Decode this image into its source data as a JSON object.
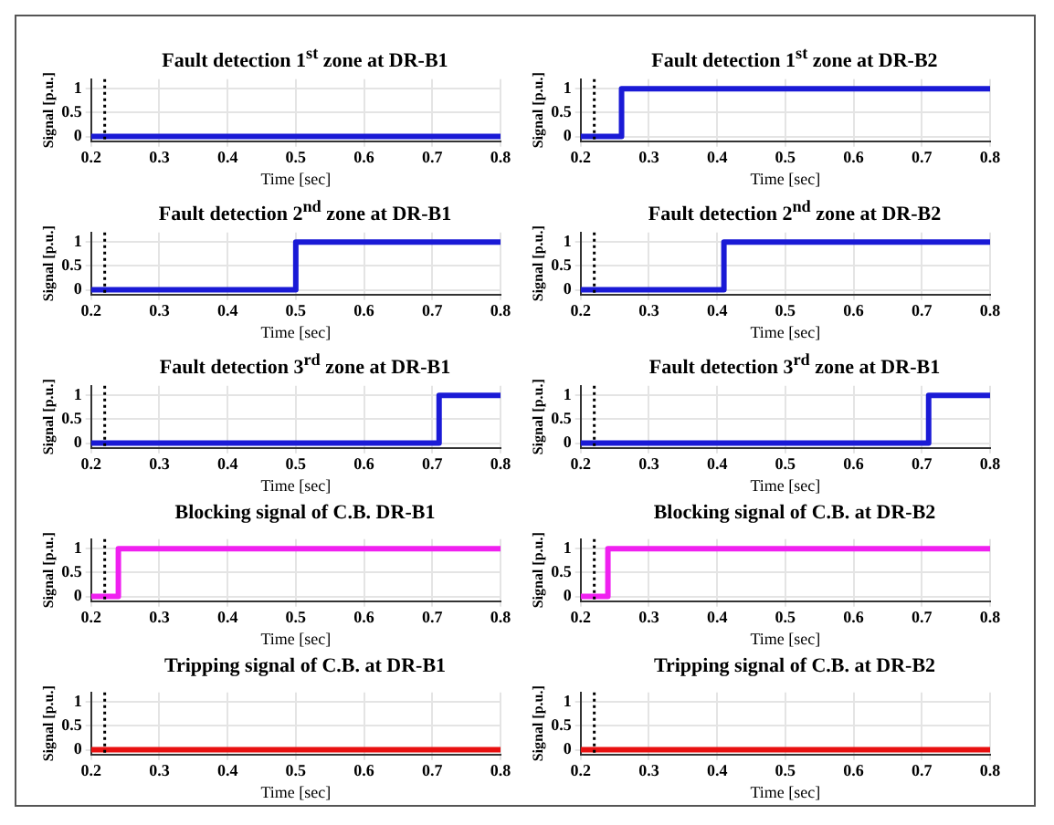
{
  "chart_data": [
    {
      "type": "step",
      "title": "Fault detection 1$^{st}$ zone at DR-B1",
      "xlabel": "Time [sec]",
      "ylabel": "Signal [p.u.]",
      "x": [
        0.2,
        0.8
      ],
      "values": [
        0,
        0
      ],
      "color": "#1a1ad6",
      "xlim": [
        0.2,
        0.8
      ],
      "xticks": [
        0.2,
        0.3,
        0.4,
        0.5,
        0.6,
        0.7,
        0.8
      ],
      "ylim": [
        -0.1,
        1.2
      ],
      "yticks": [
        0,
        0.5,
        1
      ],
      "grid": true,
      "ref_lines": [
        {
          "axis": "x",
          "value": 0.22,
          "color": "#000000",
          "line_style": "dotted"
        }
      ]
    },
    {
      "type": "step",
      "title": "Fault detection 1$^{st}$ zone at DR-B2",
      "xlabel": "Time [sec]",
      "ylabel": "Signal [p.u.]",
      "x": [
        0.2,
        0.26,
        0.8
      ],
      "values": [
        0,
        1,
        1
      ],
      "color": "#1a1ad6",
      "xlim": [
        0.2,
        0.8
      ],
      "xticks": [
        0.2,
        0.3,
        0.4,
        0.5,
        0.6,
        0.7,
        0.8
      ],
      "ylim": [
        -0.1,
        1.2
      ],
      "yticks": [
        0,
        0.5,
        1
      ],
      "grid": true,
      "ref_lines": [
        {
          "axis": "x",
          "value": 0.22,
          "color": "#000000",
          "line_style": "dotted"
        }
      ]
    },
    {
      "type": "step",
      "title": "Fault detection 2$^{nd}$ zone at DR-B1",
      "xlabel": "Time [sec]",
      "ylabel": "Signal [p.u.]",
      "x": [
        0.2,
        0.5,
        0.8
      ],
      "values": [
        0,
        1,
        1
      ],
      "color": "#1a1ad6",
      "xlim": [
        0.2,
        0.8
      ],
      "xticks": [
        0.2,
        0.3,
        0.4,
        0.5,
        0.6,
        0.7,
        0.8
      ],
      "ylim": [
        -0.1,
        1.2
      ],
      "yticks": [
        0,
        0.5,
        1
      ],
      "grid": true,
      "ref_lines": [
        {
          "axis": "x",
          "value": 0.22,
          "color": "#000000",
          "line_style": "dotted"
        }
      ]
    },
    {
      "type": "step",
      "title": "Fault detection 2$^{nd}$ zone at DR-B2",
      "xlabel": "Time [sec]",
      "ylabel": "Signal [p.u.]",
      "x": [
        0.2,
        0.41,
        0.8
      ],
      "values": [
        0,
        1,
        1
      ],
      "color": "#1a1ad6",
      "xlim": [
        0.2,
        0.8
      ],
      "xticks": [
        0.2,
        0.3,
        0.4,
        0.5,
        0.6,
        0.7,
        0.8
      ],
      "ylim": [
        -0.1,
        1.2
      ],
      "yticks": [
        0,
        0.5,
        1
      ],
      "grid": true,
      "ref_lines": [
        {
          "axis": "x",
          "value": 0.22,
          "color": "#000000",
          "line_style": "dotted"
        }
      ]
    },
    {
      "type": "step",
      "title": "Fault detection 3$^{rd}$ zone at DR-B1",
      "xlabel": "Time [sec]",
      "ylabel": "Signal [p.u.]",
      "x": [
        0.2,
        0.71,
        0.8
      ],
      "values": [
        0,
        1,
        1
      ],
      "color": "#1a1ad6",
      "xlim": [
        0.2,
        0.8
      ],
      "xticks": [
        0.2,
        0.3,
        0.4,
        0.5,
        0.6,
        0.7,
        0.8
      ],
      "ylim": [
        -0.1,
        1.2
      ],
      "yticks": [
        0,
        0.5,
        1
      ],
      "grid": true,
      "ref_lines": [
        {
          "axis": "x",
          "value": 0.22,
          "color": "#000000",
          "line_style": "dotted"
        }
      ]
    },
    {
      "type": "step",
      "title": "Fault detection 3$^{rd}$ zone at DR-B1",
      "xlabel": "Time [sec]",
      "ylabel": "Signal [p.u.]",
      "x": [
        0.2,
        0.71,
        0.8
      ],
      "values": [
        0,
        1,
        1
      ],
      "color": "#1a1ad6",
      "xlim": [
        0.2,
        0.8
      ],
      "xticks": [
        0.2,
        0.3,
        0.4,
        0.5,
        0.6,
        0.7,
        0.8
      ],
      "ylim": [
        -0.1,
        1.2
      ],
      "yticks": [
        0,
        0.5,
        1
      ],
      "grid": true,
      "ref_lines": [
        {
          "axis": "x",
          "value": 0.22,
          "color": "#000000",
          "line_style": "dotted"
        }
      ]
    },
    {
      "type": "step",
      "title": "Blocking signal of C.B. DR-B1",
      "xlabel": "Time [sec]",
      "ylabel": "Signal [p.u.]",
      "x": [
        0.2,
        0.24,
        0.8
      ],
      "values": [
        0,
        1,
        1
      ],
      "color": "#f020f0",
      "xlim": [
        0.2,
        0.8
      ],
      "xticks": [
        0.2,
        0.3,
        0.4,
        0.5,
        0.6,
        0.7,
        0.8
      ],
      "ylim": [
        -0.1,
        1.2
      ],
      "yticks": [
        0,
        0.5,
        1
      ],
      "grid": true,
      "ref_lines": [
        {
          "axis": "x",
          "value": 0.22,
          "color": "#000000",
          "line_style": "dotted"
        }
      ]
    },
    {
      "type": "step",
      "title": "Blocking signal of C.B. at DR-B2",
      "xlabel": "Time [sec]",
      "ylabel": "Signal [p.u.]",
      "x": [
        0.2,
        0.24,
        0.8
      ],
      "values": [
        0,
        1,
        1
      ],
      "color": "#f020f0",
      "xlim": [
        0.2,
        0.8
      ],
      "xticks": [
        0.2,
        0.3,
        0.4,
        0.5,
        0.6,
        0.7,
        0.8
      ],
      "ylim": [
        -0.1,
        1.2
      ],
      "yticks": [
        0,
        0.5,
        1
      ],
      "grid": true,
      "ref_lines": [
        {
          "axis": "x",
          "value": 0.22,
          "color": "#000000",
          "line_style": "dotted"
        }
      ]
    },
    {
      "type": "step",
      "title": "Tripping signal of C.B. at DR-B1",
      "xlabel": "Time [sec]",
      "ylabel": "Signal [p.u.]",
      "x": [
        0.2,
        0.8
      ],
      "values": [
        0,
        0
      ],
      "color": "#e81010",
      "xlim": [
        0.2,
        0.8
      ],
      "xticks": [
        0.2,
        0.3,
        0.4,
        0.5,
        0.6,
        0.7,
        0.8
      ],
      "ylim": [
        -0.1,
        1.2
      ],
      "yticks": [
        0,
        0.5,
        1
      ],
      "grid": true,
      "ref_lines": [
        {
          "axis": "x",
          "value": 0.22,
          "color": "#000000",
          "line_style": "dotted"
        }
      ]
    },
    {
      "type": "step",
      "title": "Tripping signal of C.B. at DR-B2",
      "xlabel": "Time [sec]",
      "ylabel": "Signal [p.u.]",
      "x": [
        0.2,
        0.8
      ],
      "values": [
        0,
        0
      ],
      "color": "#e81010",
      "xlim": [
        0.2,
        0.8
      ],
      "xticks": [
        0.2,
        0.3,
        0.4,
        0.5,
        0.6,
        0.7,
        0.8
      ],
      "ylim": [
        -0.1,
        1.2
      ],
      "yticks": [
        0,
        0.5,
        1
      ],
      "grid": true,
      "ref_lines": [
        {
          "axis": "x",
          "value": 0.22,
          "color": "#000000",
          "line_style": "dotted"
        }
      ]
    }
  ]
}
